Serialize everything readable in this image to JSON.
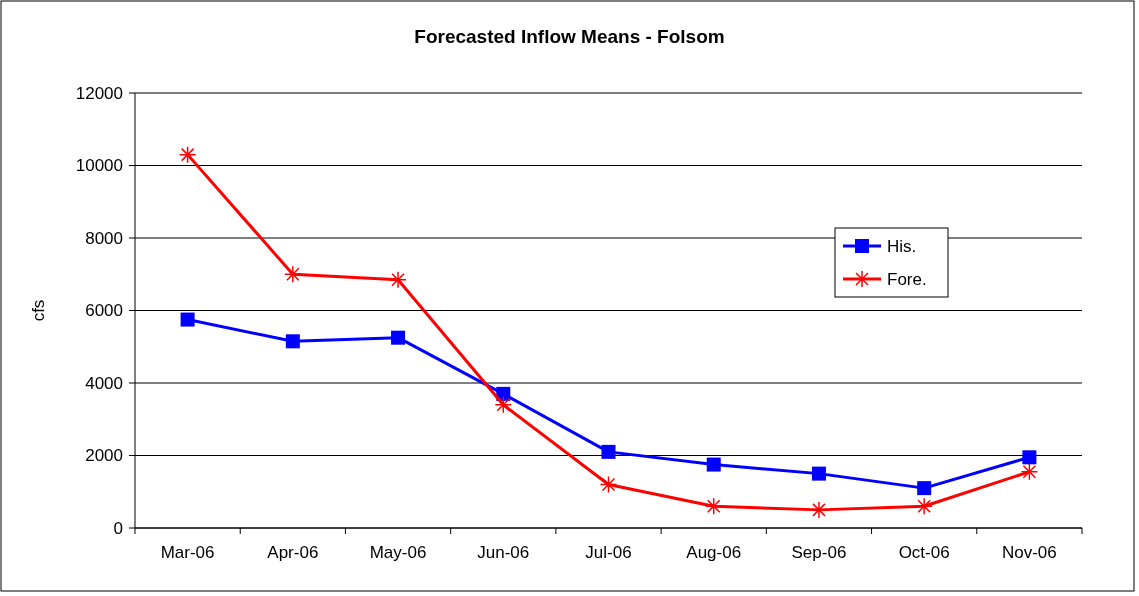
{
  "chart_data": {
    "type": "line",
    "title": "Forecasted Inflow Means - Folsom",
    "ylabel": "cfs",
    "categories": [
      "Mar-06",
      "Apr-06",
      "May-06",
      "Jun-06",
      "Jul-06",
      "Aug-06",
      "Sep-06",
      "Oct-06",
      "Nov-06"
    ],
    "series": [
      {
        "name": "His.",
        "color": "#0000ff",
        "marker": "square",
        "values": [
          5750,
          5150,
          5250,
          3700,
          2100,
          1750,
          1500,
          1100,
          1950
        ]
      },
      {
        "name": "Fore.",
        "color": "#ff0000",
        "marker": "cross",
        "values": [
          10300,
          7000,
          6850,
          3400,
          1200,
          600,
          500,
          600,
          1550
        ]
      }
    ],
    "ylim": [
      0,
      12000
    ],
    "yticks": [
      0,
      2000,
      4000,
      6000,
      8000,
      10000,
      12000
    ],
    "grid": "y",
    "legend": "right",
    "line_style": "solid"
  }
}
